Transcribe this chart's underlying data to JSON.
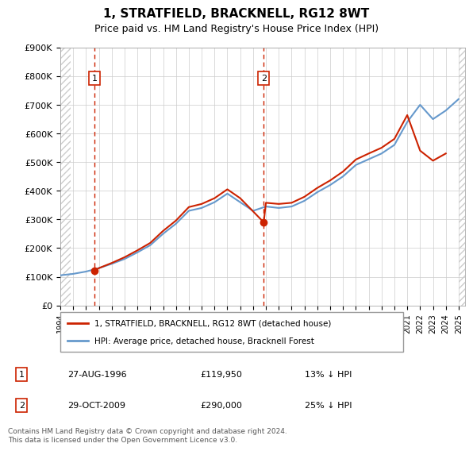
{
  "title": "1, STRATFIELD, BRACKNELL, RG12 8WT",
  "subtitle": "Price paid vs. HM Land Registry's House Price Index (HPI)",
  "ylabel": "",
  "xlabel": "",
  "ylim": [
    0,
    900000
  ],
  "yticks": [
    0,
    100000,
    200000,
    300000,
    400000,
    500000,
    600000,
    700000,
    800000,
    900000
  ],
  "ytick_labels": [
    "£0",
    "£100K",
    "£200K",
    "£300K",
    "£400K",
    "£500K",
    "£600K",
    "£700K",
    "£800K",
    "£900K"
  ],
  "xlim_start": 1994.0,
  "xlim_end": 2025.5,
  "transactions": [
    {
      "label": "1",
      "date": "27-AUG-1996",
      "year": 1996.65,
      "price": 119950,
      "pct": "13%",
      "direction": "↓"
    },
    {
      "label": "2",
      "date": "29-OCT-2009",
      "year": 2009.83,
      "price": 290000,
      "pct": "25%",
      "direction": "↓"
    }
  ],
  "hpi_line_color": "#6699cc",
  "price_line_color": "#cc2200",
  "transaction_marker_color": "#cc2200",
  "vline_color": "#cc2200",
  "legend_label_price": "1, STRATFIELD, BRACKNELL, RG12 8WT (detached house)",
  "legend_label_hpi": "HPI: Average price, detached house, Bracknell Forest",
  "footer": "Contains HM Land Registry data © Crown copyright and database right 2024.\nThis data is licensed under the Open Government Licence v3.0.",
  "background_hatch_color": "#e8e8e8",
  "hpi_data_years": [
    1994,
    1995,
    1996,
    1997,
    1998,
    1999,
    2000,
    2001,
    2002,
    2003,
    2004,
    2005,
    2006,
    2007,
    2008,
    2009,
    2010,
    2011,
    2012,
    2013,
    2014,
    2015,
    2016,
    2017,
    2018,
    2019,
    2020,
    2021,
    2022,
    2023,
    2024,
    2025
  ],
  "hpi_data_values": [
    105000,
    110000,
    118000,
    130000,
    145000,
    162000,
    185000,
    210000,
    250000,
    285000,
    330000,
    340000,
    360000,
    390000,
    360000,
    330000,
    345000,
    340000,
    345000,
    365000,
    395000,
    420000,
    450000,
    490000,
    510000,
    530000,
    560000,
    640000,
    700000,
    650000,
    680000,
    720000
  ],
  "price_data_years": [
    1996.65,
    1997,
    1998,
    1999,
    2000,
    2001,
    2002,
    2003,
    2004,
    2005,
    2006,
    2007,
    2008,
    2009.83,
    2010,
    2011,
    2012,
    2013,
    2014,
    2015,
    2016,
    2017,
    2018,
    2019,
    2020,
    2021,
    2022,
    2023,
    2024
  ],
  "price_data_values": [
    119950,
    130000,
    148000,
    168000,
    192000,
    218000,
    260000,
    296000,
    343000,
    354000,
    374000,
    405000,
    374000,
    290000,
    358000,
    354000,
    358000,
    379000,
    410000,
    436000,
    467000,
    509000,
    530000,
    550000,
    581000,
    664000,
    540000,
    505000,
    530000
  ]
}
